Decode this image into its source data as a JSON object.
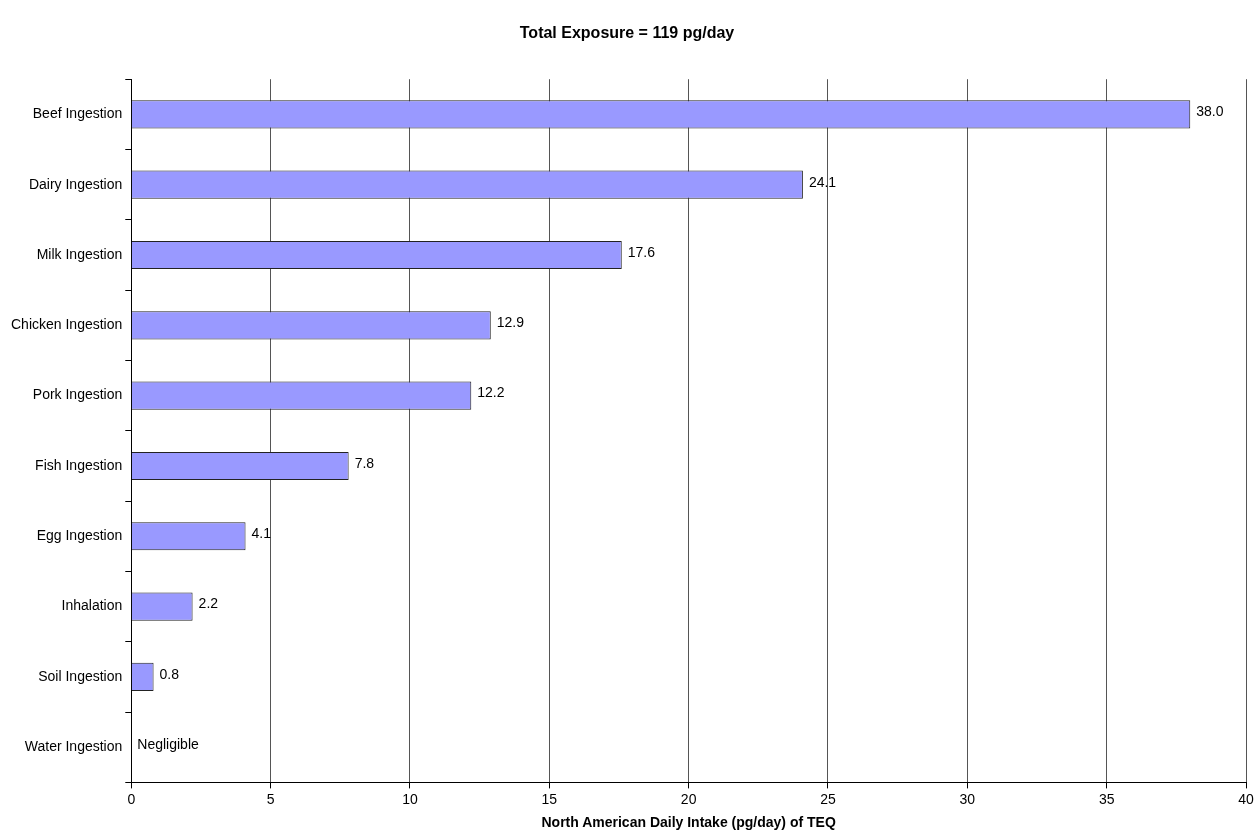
{
  "chart_data": {
    "type": "bar",
    "orientation": "horizontal",
    "title": "Total Exposure = 119 pg/day",
    "xlabel": "North American Daily Intake (pg/day) of TEQ",
    "categories": [
      "Beef Ingestion",
      "Dairy Ingestion",
      "Milk Ingestion",
      "Chicken Ingestion",
      "Pork Ingestion",
      "Fish Ingestion",
      "Egg Ingestion",
      "Inhalation",
      "Soil Ingestion",
      "Water Ingestion"
    ],
    "values": [
      38.0,
      24.1,
      17.6,
      12.9,
      12.2,
      7.8,
      4.1,
      2.2,
      0.8,
      null
    ],
    "value_labels": [
      "38.0",
      "24.1",
      "17.6",
      "12.9",
      "12.2",
      "7.8",
      "4.1",
      "2.2",
      "0.8",
      "Negligible"
    ],
    "color": "#9999ff",
    "xlim": [
      0,
      40
    ],
    "xticks": [
      0,
      5,
      10,
      15,
      20,
      25,
      30,
      35,
      40
    ],
    "grid": "x",
    "legend": false
  }
}
